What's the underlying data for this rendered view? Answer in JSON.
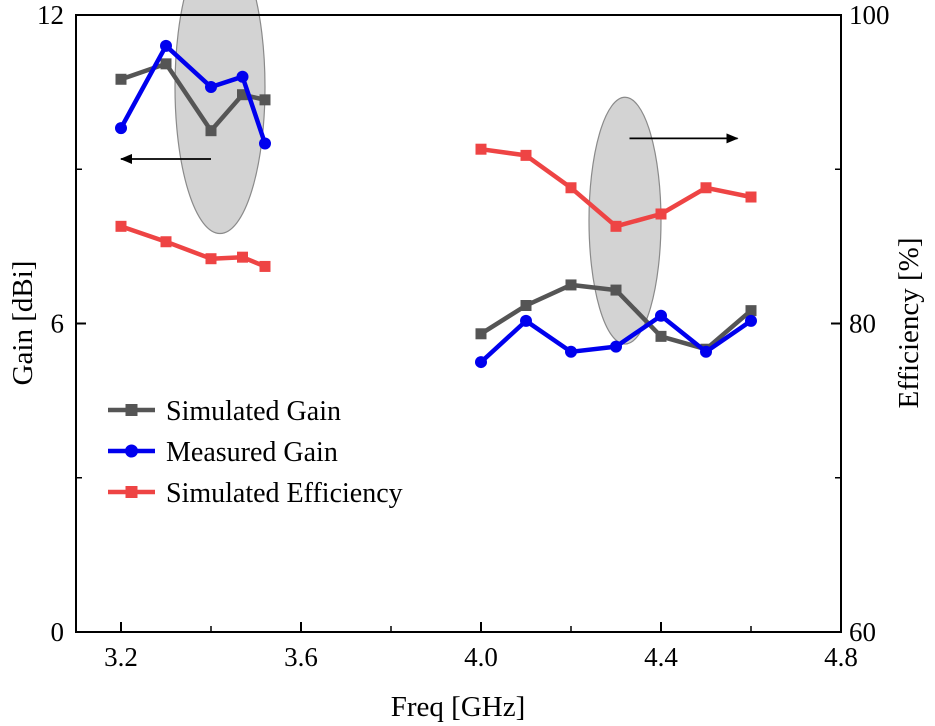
{
  "chart_data": {
    "type": "line",
    "title": "",
    "xlabel": "Freq [GHz]",
    "ylabel_left": "Gain [dBi]",
    "ylabel_right": "Efficiency [%]",
    "xlim": [
      3.1,
      4.8
    ],
    "ylim_left": [
      0,
      12
    ],
    "ylim_right": [
      60,
      100
    ],
    "x_ticks": [
      "3.2",
      "3.6",
      "4.0",
      "4.4",
      "4.8"
    ],
    "y_left_ticks": [
      "0",
      "6",
      "12"
    ],
    "y_right_ticks": [
      "60",
      "80",
      "100"
    ],
    "legend_position": "center-left",
    "grid": false,
    "series": [
      {
        "name": "Simulated Gain",
        "axis": "left",
        "color": "#555555",
        "marker": "square",
        "segments": [
          {
            "x": [
              3.2,
              3.3,
              3.4,
              3.47,
              3.52
            ],
            "y": [
              10.75,
              11.05,
              9.75,
              10.45,
              10.35
            ]
          },
          {
            "x": [
              4.0,
              4.1,
              4.2,
              4.3,
              4.4,
              4.5,
              4.6
            ],
            "y": [
              5.8,
              6.35,
              6.75,
              6.65,
              5.75,
              5.5,
              6.25
            ]
          }
        ]
      },
      {
        "name": "Measured Gain",
        "axis": "left",
        "color": "#0000ee",
        "marker": "circle",
        "segments": [
          {
            "x": [
              3.2,
              3.3,
              3.4,
              3.47,
              3.52
            ],
            "y": [
              9.8,
              11.4,
              10.6,
              10.8,
              9.5
            ]
          },
          {
            "x": [
              4.0,
              4.1,
              4.2,
              4.3,
              4.4,
              4.5,
              4.6
            ],
            "y": [
              5.25,
              6.05,
              5.45,
              5.55,
              6.15,
              5.45,
              6.05
            ]
          }
        ]
      },
      {
        "name": "Simulated Efficiency",
        "axis": "right",
        "color": "#ee4444",
        "marker": "square",
        "segments": [
          {
            "x": [
              3.2,
              3.3,
              3.4,
              3.47,
              3.52
            ],
            "y": [
              86.3,
              85.3,
              84.2,
              84.3,
              83.7
            ]
          },
          {
            "x": [
              4.0,
              4.1,
              4.2,
              4.3,
              4.4,
              4.5,
              4.6
            ],
            "y": [
              91.3,
              90.9,
              88.8,
              86.3,
              87.1,
              88.8,
              88.2
            ]
          }
        ]
      }
    ],
    "annotations": [
      {
        "type": "ellipse",
        "cx": 3.42,
        "cy_left": 10.6,
        "rx": 0.1,
        "ry_left": 2.85,
        "color": "#d3d3d3"
      },
      {
        "type": "arrow",
        "direction": "left",
        "x_from": 3.4,
        "x_to": 3.2,
        "y_left": 9.2,
        "meaning": "Gain axis"
      },
      {
        "type": "ellipse",
        "cx": 4.32,
        "cy_left": 8.0,
        "rx": 0.08,
        "ry_left": 2.4,
        "color": "#d3d3d3"
      },
      {
        "type": "arrow",
        "direction": "right",
        "x_from": 4.33,
        "x_to": 4.57,
        "y_left": 9.6,
        "meaning": "Efficiency axis"
      }
    ]
  }
}
